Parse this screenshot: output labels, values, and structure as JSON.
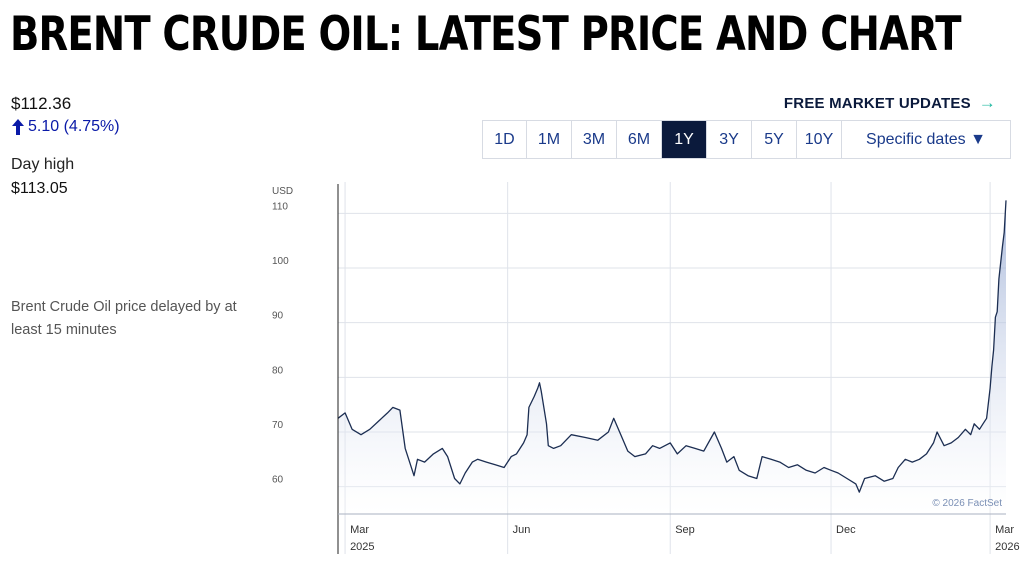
{
  "title": "BRENT CRUDE OIL: LATEST PRICE AND CHART",
  "quote": {
    "price": "$112.36",
    "change": "5.10 (4.75%)",
    "day_high_label": "Day high",
    "day_high_value": "$113.05",
    "delay_note": "Brent Crude Oil price delayed by at least 15 minutes"
  },
  "free_updates": {
    "label": "FREE MARKET UPDATES",
    "arrow": "→"
  },
  "ranges": [
    {
      "label": "1D",
      "active": false
    },
    {
      "label": "1M",
      "active": false
    },
    {
      "label": "3M",
      "active": false
    },
    {
      "label": "6M",
      "active": false
    },
    {
      "label": "1Y",
      "active": true
    },
    {
      "label": "3Y",
      "active": false
    },
    {
      "label": "5Y",
      "active": false
    },
    {
      "label": "10Y",
      "active": false
    }
  ],
  "specific_dates": "Specific dates ▼",
  "colors": {
    "navy": "#0b1a3c",
    "accent_blue": "#0a1aa8",
    "teal": "#1fb8a0",
    "line": "#1c2e52"
  },
  "chart_data": {
    "type": "area",
    "y_unit_label": "USD",
    "ylim": [
      55,
      115
    ],
    "y_ticks": [
      60,
      70,
      80,
      90,
      100,
      110
    ],
    "x_range": [
      "2025-02-25",
      "2026-03-10"
    ],
    "x_ticks": [
      {
        "date": "2025-03-01",
        "label": "Mar",
        "sublabel": "2025"
      },
      {
        "date": "2025-06-01",
        "label": "Jun",
        "sublabel": ""
      },
      {
        "date": "2025-09-01",
        "label": "Sep",
        "sublabel": ""
      },
      {
        "date": "2025-12-01",
        "label": "Dec",
        "sublabel": ""
      },
      {
        "date": "2026-03-01",
        "label": "Mar",
        "sublabel": "2026"
      }
    ],
    "grid": true,
    "credit": "© 2026 FactSet",
    "series": [
      {
        "points": [
          [
            "2025-02-25",
            72.5
          ],
          [
            "2025-03-01",
            73.5
          ],
          [
            "2025-03-05",
            70.5
          ],
          [
            "2025-03-10",
            69.5
          ],
          [
            "2025-03-15",
            70.5
          ],
          [
            "2025-03-20",
            72.0
          ],
          [
            "2025-03-25",
            73.5
          ],
          [
            "2025-03-28",
            74.5
          ],
          [
            "2025-04-01",
            74.0
          ],
          [
            "2025-04-04",
            67.0
          ],
          [
            "2025-04-07",
            64.0
          ],
          [
            "2025-04-09",
            62.0
          ],
          [
            "2025-04-11",
            65.0
          ],
          [
            "2025-04-15",
            64.5
          ],
          [
            "2025-04-20",
            66.0
          ],
          [
            "2025-04-25",
            67.0
          ],
          [
            "2025-04-28",
            65.5
          ],
          [
            "2025-05-02",
            61.5
          ],
          [
            "2025-05-05",
            60.5
          ],
          [
            "2025-05-08",
            62.5
          ],
          [
            "2025-05-12",
            64.5
          ],
          [
            "2025-05-15",
            65.0
          ],
          [
            "2025-05-20",
            64.5
          ],
          [
            "2025-05-25",
            64.0
          ],
          [
            "2025-05-30",
            63.5
          ],
          [
            "2025-06-03",
            65.5
          ],
          [
            "2025-06-06",
            66.0
          ],
          [
            "2025-06-10",
            68.0
          ],
          [
            "2025-06-12",
            69.5
          ],
          [
            "2025-06-13",
            74.5
          ],
          [
            "2025-06-16",
            76.5
          ],
          [
            "2025-06-18",
            78.0
          ],
          [
            "2025-06-19",
            79.0
          ],
          [
            "2025-06-20",
            77.5
          ],
          [
            "2025-06-23",
            71.5
          ],
          [
            "2025-06-24",
            67.5
          ],
          [
            "2025-06-27",
            67.0
          ],
          [
            "2025-07-01",
            67.5
          ],
          [
            "2025-07-07",
            69.5
          ],
          [
            "2025-07-15",
            69.0
          ],
          [
            "2025-07-22",
            68.5
          ],
          [
            "2025-07-28",
            70.0
          ],
          [
            "2025-07-31",
            72.5
          ],
          [
            "2025-08-04",
            69.5
          ],
          [
            "2025-08-08",
            66.5
          ],
          [
            "2025-08-12",
            65.5
          ],
          [
            "2025-08-18",
            66.0
          ],
          [
            "2025-08-22",
            67.5
          ],
          [
            "2025-08-26",
            67.0
          ],
          [
            "2025-09-01",
            68.0
          ],
          [
            "2025-09-05",
            66.0
          ],
          [
            "2025-09-10",
            67.5
          ],
          [
            "2025-09-15",
            67.0
          ],
          [
            "2025-09-20",
            66.5
          ],
          [
            "2025-09-26",
            70.0
          ],
          [
            "2025-09-30",
            67.0
          ],
          [
            "2025-10-03",
            64.5
          ],
          [
            "2025-10-07",
            65.5
          ],
          [
            "2025-10-10",
            63.0
          ],
          [
            "2025-10-15",
            62.0
          ],
          [
            "2025-10-20",
            61.5
          ],
          [
            "2025-10-23",
            65.5
          ],
          [
            "2025-10-28",
            65.0
          ],
          [
            "2025-11-02",
            64.5
          ],
          [
            "2025-11-07",
            63.5
          ],
          [
            "2025-11-12",
            64.0
          ],
          [
            "2025-11-17",
            63.0
          ],
          [
            "2025-11-22",
            62.5
          ],
          [
            "2025-11-27",
            63.5
          ],
          [
            "2025-12-01",
            63.0
          ],
          [
            "2025-12-05",
            62.5
          ],
          [
            "2025-12-10",
            61.5
          ],
          [
            "2025-12-15",
            60.5
          ],
          [
            "2025-12-17",
            59.0
          ],
          [
            "2025-12-20",
            61.5
          ],
          [
            "2025-12-26",
            62.0
          ],
          [
            "2025-12-31",
            61.0
          ],
          [
            "2026-01-05",
            61.5
          ],
          [
            "2026-01-08",
            63.5
          ],
          [
            "2026-01-12",
            65.0
          ],
          [
            "2026-01-16",
            64.5
          ],
          [
            "2026-01-20",
            65.0
          ],
          [
            "2026-01-24",
            66.0
          ],
          [
            "2026-01-28",
            68.0
          ],
          [
            "2026-01-30",
            70.0
          ],
          [
            "2026-02-03",
            67.5
          ],
          [
            "2026-02-07",
            68.0
          ],
          [
            "2026-02-11",
            69.0
          ],
          [
            "2026-02-15",
            70.5
          ],
          [
            "2026-02-18",
            69.5
          ],
          [
            "2026-02-20",
            71.5
          ],
          [
            "2026-02-23",
            70.5
          ],
          [
            "2026-02-25",
            71.5
          ],
          [
            "2026-02-27",
            72.5
          ],
          [
            "2026-03-01",
            78.0
          ],
          [
            "2026-03-02",
            82.0
          ],
          [
            "2026-03-03",
            85.0
          ],
          [
            "2026-03-04",
            91.0
          ],
          [
            "2026-03-05",
            92.0
          ],
          [
            "2026-03-06",
            98.0
          ],
          [
            "2026-03-07",
            101.0
          ],
          [
            "2026-03-08",
            104.0
          ],
          [
            "2026-03-09",
            106.5
          ],
          [
            "2026-03-10",
            112.36
          ]
        ]
      }
    ]
  }
}
